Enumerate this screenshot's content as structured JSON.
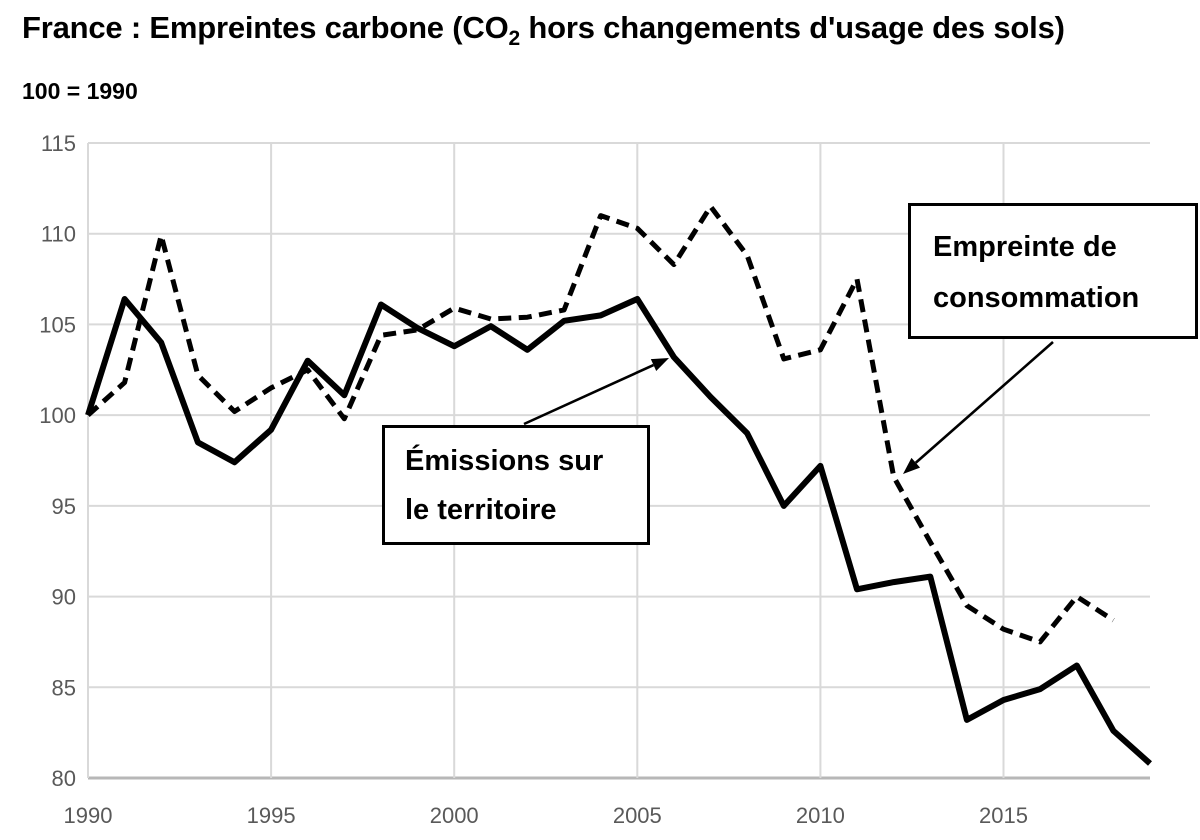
{
  "header": {
    "title_pre": "France : Empreintes carbone (CO",
    "title_subscript": "2",
    "title_post": " hors changements d'usage des sols)",
    "subtitle": "100 = 1990"
  },
  "annotations": {
    "territory": {
      "line1": "Émissions sur",
      "line2": "le territoire"
    },
    "consumption": {
      "line1": "Empreinte de",
      "line2": "consommation"
    }
  },
  "colors": {
    "line": "#000000",
    "grid": "#d9d9d9",
    "axis": "#b7b7b7",
    "tick_label": "#595959",
    "background": "#ffffff",
    "annotation_border": "#000000"
  },
  "chart_data": {
    "type": "line",
    "title": "France : Empreintes carbone (CO2 hors changements d'usage des sols)",
    "subtitle": "100 = 1990",
    "x": [
      1990,
      1991,
      1992,
      1993,
      1994,
      1995,
      1996,
      1997,
      1998,
      1999,
      2000,
      2001,
      2002,
      2003,
      2004,
      2005,
      2006,
      2007,
      2008,
      2009,
      2010,
      2011,
      2012,
      2013,
      2014,
      2015,
      2016,
      2017,
      2018,
      2019
    ],
    "series": [
      {
        "name": "Émissions sur le territoire",
        "style": "solid",
        "values": [
          100,
          106.4,
          104.0,
          98.5,
          97.4,
          99.2,
          103.0,
          101.1,
          106.1,
          104.8,
          103.8,
          104.9,
          103.6,
          105.2,
          105.5,
          106.4,
          103.2,
          101.0,
          99.0,
          95.0,
          97.2,
          90.4,
          90.8,
          91.1,
          83.2,
          84.3,
          84.9,
          86.2,
          82.6,
          80.8
        ]
      },
      {
        "name": "Empreinte de consommation",
        "style": "dashed",
        "values": [
          100,
          101.8,
          109.9,
          102.2,
          100.2,
          101.5,
          102.5,
          99.8,
          104.4,
          104.7,
          105.9,
          105.3,
          105.4,
          105.8,
          111.0,
          110.3,
          108.3,
          111.5,
          108.8,
          103.1,
          103.6,
          107.5,
          96.6,
          93.0,
          89.5,
          88.2,
          87.5,
          90.0,
          88.7,
          null
        ]
      }
    ],
    "xlim": [
      1990,
      2019
    ],
    "ylim": [
      80,
      115
    ],
    "xticks": [
      1990,
      1995,
      2000,
      2005,
      2010,
      2015
    ],
    "yticks": [
      80,
      85,
      90,
      95,
      100,
      105,
      110,
      115
    ],
    "grid": true,
    "legend_position": "annotation boxes with arrows pointing to lines"
  }
}
